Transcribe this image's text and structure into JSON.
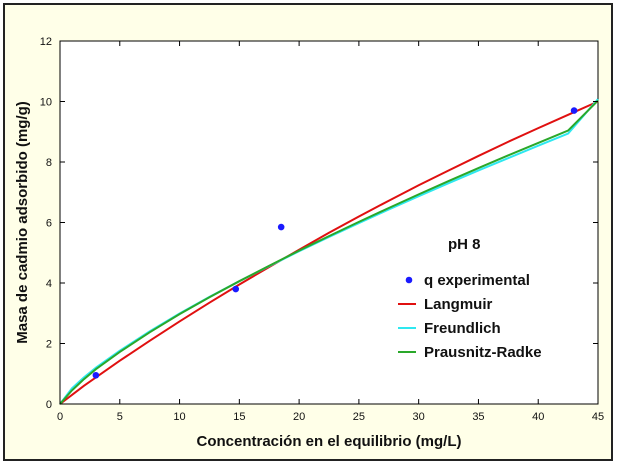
{
  "chart_data": {
    "type": "line",
    "xlabel": "Concentración en el equilibrio (mg/L)",
    "ylabel": "Masa de cadmio adsorbido (mg/g)",
    "xlim": [
      0,
      45
    ],
    "ylim": [
      0,
      12
    ],
    "xticks": [
      0,
      5,
      10,
      15,
      20,
      25,
      30,
      35,
      40,
      45
    ],
    "yticks": [
      0,
      2,
      4,
      6,
      8,
      10,
      12
    ],
    "grid": false,
    "legend_title": "pH 8",
    "legend_position": "right-center",
    "points": {
      "name": "q experimental",
      "color": "#1a1aff",
      "x": [
        3.0,
        14.7,
        18.5,
        43.0
      ],
      "y": [
        0.95,
        3.8,
        5.85,
        9.7
      ]
    },
    "series": [
      {
        "name": "Langmuir",
        "color": "#e01010",
        "x": [
          0,
          1,
          2,
          3,
          5,
          7.5,
          10,
          12.5,
          15,
          17.5,
          20,
          22.5,
          25,
          27.5,
          30,
          32.5,
          35,
          37.5,
          40,
          42.5,
          45
        ],
        "y": [
          0,
          0.3,
          0.6,
          0.88,
          1.43,
          2.09,
          2.73,
          3.35,
          3.95,
          4.53,
          5.1,
          5.66,
          6.2,
          6.72,
          7.23,
          7.72,
          8.2,
          8.67,
          9.12,
          9.56,
          10.0
        ]
      },
      {
        "name": "Freundlich",
        "color": "#2ee8f0",
        "x": [
          0,
          1,
          2,
          3,
          5,
          7.5,
          10,
          12.5,
          15,
          17.5,
          20,
          22.5,
          25,
          27.5,
          30,
          32.5,
          35,
          37.5,
          40,
          42.5,
          45
        ],
        "y": [
          0,
          0.52,
          0.88,
          1.2,
          1.76,
          2.4,
          2.99,
          3.54,
          4.06,
          4.56,
          5.05,
          5.52,
          5.98,
          6.43,
          6.87,
          7.3,
          7.72,
          8.13,
          8.54,
          8.94,
          10.08
        ]
      },
      {
        "name": "Prausnitz-Radke",
        "color": "#2aa82a",
        "x": [
          0,
          1,
          2,
          3,
          5,
          7.5,
          10,
          12.5,
          15,
          17.5,
          20,
          22.5,
          25,
          27.5,
          30,
          32.5,
          35,
          37.5,
          40,
          42.5,
          45
        ],
        "y": [
          0,
          0.45,
          0.82,
          1.15,
          1.72,
          2.37,
          2.97,
          3.53,
          4.06,
          4.57,
          5.07,
          5.55,
          6.02,
          6.48,
          6.93,
          7.37,
          7.8,
          8.22,
          8.63,
          9.04,
          10.03
        ]
      }
    ]
  }
}
